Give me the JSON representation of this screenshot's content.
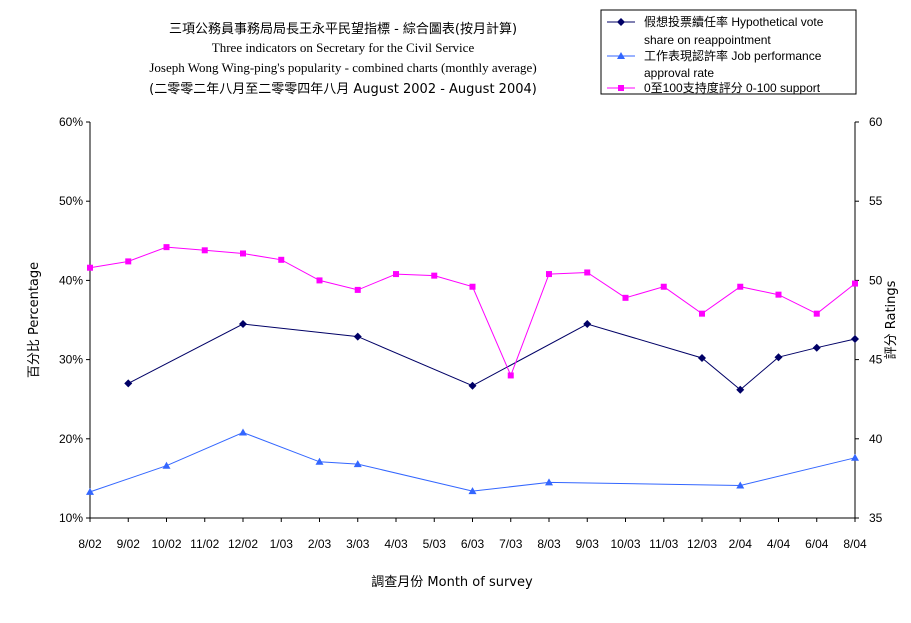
{
  "chart_data": {
    "type": "line",
    "title_lines": [
      "三項公務員事務局局長王永平民望指標 - 綜合圖表(按月計算)",
      "Three indicators on Secretary for the Civil Service",
      "Joseph Wong Wing-ping's popularity - combined charts (monthly average)",
      "(二零零二年八月至二零零四年八月 August 2002 - August 2004)"
    ],
    "xlabel": "調查月份 Month of survey",
    "ylabel_left": "百分比 Percentage",
    "ylabel_right": "評分 Ratings",
    "categories": [
      "8/02",
      "9/02",
      "10/02",
      "11/02",
      "12/02",
      "1/03",
      "2/03",
      "3/03",
      "4/03",
      "5/03",
      "6/03",
      "7/03",
      "8/03",
      "9/03",
      "10/03",
      "11/03",
      "12/03",
      "2/04",
      "4/04",
      "6/04",
      "8/04"
    ],
    "ylim_left": [
      0.1,
      0.6
    ],
    "ylim_right": [
      35,
      60
    ],
    "yticks_left": [
      "10%",
      "20%",
      "30%",
      "40%",
      "50%",
      "60%"
    ],
    "yticks_right": [
      "35",
      "40",
      "45",
      "50",
      "55",
      "60"
    ],
    "series": [
      {
        "name": "假想投票續任率 Hypothetical vote share on reappointment",
        "axis": "left",
        "color": "#000066",
        "marker": "diamond",
        "values": [
          null,
          0.27,
          null,
          null,
          0.345,
          null,
          null,
          0.329,
          null,
          null,
          0.267,
          null,
          null,
          0.345,
          null,
          null,
          0.302,
          0.262,
          0.303,
          0.315,
          0.326
        ]
      },
      {
        "name": "工作表現認許率 Job performance approval rate",
        "axis": "left",
        "color": "#3366ff",
        "marker": "triangle",
        "values": [
          0.133,
          null,
          0.166,
          null,
          0.208,
          null,
          0.171,
          0.168,
          null,
          null,
          0.134,
          null,
          0.145,
          null,
          null,
          null,
          null,
          0.141,
          null,
          null,
          0.176
        ]
      },
      {
        "name": "0至100支持度評分 0-100 support",
        "axis": "right",
        "color": "#ff00ff",
        "marker": "square",
        "values": [
          50.8,
          51.2,
          52.1,
          51.9,
          51.7,
          51.3,
          50.0,
          49.4,
          50.4,
          50.3,
          49.6,
          44.0,
          50.4,
          50.5,
          48.9,
          49.6,
          47.9,
          49.6,
          49.1,
          47.9,
          49.8
        ]
      }
    ],
    "legend_lines": [
      [
        "假想投票續任率 Hypothetical vote",
        "share on reappointment"
      ],
      [
        "工作表現認許率 Job performance",
        "approval rate"
      ],
      [
        "0至100支持度評分 0-100 support"
      ]
    ],
    "grid": false,
    "legend_position": "top-right"
  }
}
